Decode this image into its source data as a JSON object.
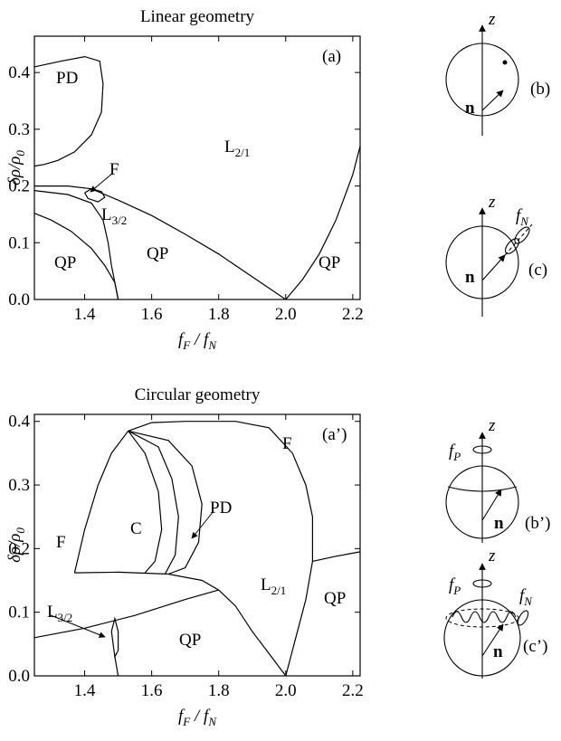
{
  "chart_data": [
    {
      "type": "line",
      "title": "Linear geometry",
      "panel_label": "(a)",
      "xlabel": [
        {
          "text": "f",
          "sub": "F"
        },
        {
          "text": " / "
        },
        {
          "text": "f",
          "sub": "N"
        }
      ],
      "ylabel": [
        {
          "text": "δρ/ρ",
          "sub": "0"
        }
      ],
      "xlim": [
        1.25,
        2.222
      ],
      "ylim": [
        0,
        0.464
      ],
      "xticks": [
        1.4,
        1.6,
        1.8,
        {
          "value": 2,
          "label": "2.0"
        },
        2.2
      ],
      "yticks": [
        {
          "value": 0,
          "label": "0.0"
        },
        0.1,
        0.2,
        0.3,
        0.4
      ],
      "color": "#000000",
      "series": [
        {
          "x": [
            1.25,
            1.33,
            1.4,
            1.445,
            1.455,
            1.45,
            1.42,
            1.37,
            1.32,
            1.28,
            1.25
          ],
          "values": [
            0.41,
            0.42,
            0.428,
            0.42,
            0.38,
            0.33,
            0.29,
            0.26,
            0.245,
            0.238,
            0.235
          ]
        },
        {
          "x": [
            1.25,
            1.35,
            1.42,
            1.5,
            1.6,
            1.7,
            1.8,
            1.9,
            2.0
          ],
          "values": [
            0.2,
            0.2,
            0.195,
            0.175,
            0.148,
            0.115,
            0.08,
            0.04,
            0
          ]
        },
        {
          "x": [
            2.0,
            2.05,
            2.1,
            2.15,
            2.2,
            2.222
          ],
          "values": [
            0,
            0.035,
            0.08,
            0.14,
            0.22,
            0.27
          ]
        },
        {
          "x": [
            1.25,
            1.35,
            1.42,
            1.455,
            1.47,
            1.48,
            1.49,
            1.5
          ],
          "values": [
            0.192,
            0.185,
            0.17,
            0.14,
            0.1,
            0.06,
            0.03,
            0
          ]
        },
        {
          "x": [
            1.25,
            1.3,
            1.36,
            1.42,
            1.46,
            1.49,
            1.5
          ],
          "values": [
            0.152,
            0.14,
            0.12,
            0.09,
            0.06,
            0.03,
            0
          ]
        },
        {
          "x": [
            1.4,
            1.42,
            1.45,
            1.46,
            1.44,
            1.41,
            1.4
          ],
          "values": [
            0.188,
            0.195,
            0.19,
            0.18,
            0.172,
            0.178,
            0.188
          ]
        }
      ],
      "annotations": [
        {
          "text": "PD"
        },
        {
          "text": "L",
          "sub": "2/1"
        },
        {
          "text": "F"
        },
        {
          "text": "L",
          "sub": "3/2"
        },
        {
          "text": "QP"
        },
        {
          "text": "QP"
        },
        {
          "text": "QP"
        }
      ]
    },
    {
      "type": "line",
      "title": "Circular geometry",
      "panel_label": "(a’)",
      "xlabel": [
        {
          "text": "f",
          "sub": "F"
        },
        {
          "text": " / "
        },
        {
          "text": "f",
          "sub": "N"
        }
      ],
      "ylabel": [
        {
          "text": "δρ/ρ",
          "sub": "0"
        }
      ],
      "xlim": [
        1.25,
        2.222
      ],
      "ylim": [
        0,
        0.411
      ],
      "xticks": [
        1.4,
        1.6,
        1.8,
        {
          "value": 2,
          "label": "2.0"
        },
        2.2
      ],
      "yticks": [
        {
          "value": 0,
          "label": "0.0"
        },
        0.1,
        0.2,
        0.3,
        0.4
      ],
      "color": "#000000",
      "series": [
        {
          "x": [
            1.53,
            1.6,
            1.7,
            1.85,
            1.95,
            2.02,
            2.06,
            2.08,
            2.08,
            2.06,
            2.03,
            2.0
          ],
          "values": [
            0.385,
            0.398,
            0.4,
            0.4,
            0.39,
            0.35,
            0.3,
            0.25,
            0.18,
            0.12,
            0.06,
            0
          ]
        },
        {
          "x": [
            1.53,
            1.48,
            1.44,
            1.4,
            1.37
          ],
          "values": [
            0.385,
            0.35,
            0.3,
            0.23,
            0.162
          ]
        },
        {
          "x": [
            1.37,
            1.5,
            1.65,
            1.75,
            1.8,
            1.85,
            1.9,
            1.95,
            2.0
          ],
          "values": [
            0.162,
            0.163,
            0.16,
            0.15,
            0.135,
            0.11,
            0.07,
            0.035,
            0
          ]
        },
        {
          "x": [
            1.53,
            1.58,
            1.62,
            1.63,
            1.61,
            1.58
          ],
          "values": [
            0.385,
            0.35,
            0.29,
            0.23,
            0.18,
            0.162
          ]
        },
        {
          "x": [
            1.53,
            1.62,
            1.66,
            1.68,
            1.67,
            1.64
          ],
          "values": [
            0.385,
            0.36,
            0.31,
            0.25,
            0.19,
            0.16
          ]
        },
        {
          "x": [
            1.53,
            1.65,
            1.72,
            1.75,
            1.74,
            1.7,
            1.65
          ],
          "values": [
            0.385,
            0.37,
            0.33,
            0.27,
            0.21,
            0.17,
            0.16
          ]
        },
        {
          "x": [
            1.25,
            1.4,
            1.55,
            1.7,
            1.8
          ],
          "values": [
            0.06,
            0.075,
            0.095,
            0.12,
            0.135
          ]
        },
        {
          "x": [
            2.08,
            2.15,
            2.222
          ],
          "values": [
            0.18,
            0.188,
            0.195
          ]
        },
        {
          "x": [
            1.48,
            1.49,
            1.5,
            1.5,
            1.49,
            1.48
          ],
          "values": [
            0.07,
            0.09,
            0.07,
            0.04,
            0.03,
            0.07
          ]
        },
        {
          "x": [
            1.49,
            1.5
          ],
          "values": [
            0.03,
            0
          ]
        }
      ],
      "annotations": [
        {
          "text": "F"
        },
        {
          "text": "F"
        },
        {
          "text": "C"
        },
        {
          "text": "PD"
        },
        {
          "text": "L",
          "sub": "2/1"
        },
        {
          "text": "QP"
        },
        {
          "text": "L",
          "sub": "3/2"
        },
        {
          "text": "QP"
        }
      ]
    }
  ],
  "insets": [
    {
      "axis": "z",
      "vector": "n",
      "label": "(b)"
    },
    {
      "axis": "z",
      "vector": "n",
      "frequency": {
        "text": "f",
        "sub": "N"
      },
      "label": "(c)"
    },
    {
      "axis": "z",
      "vector": "n",
      "precession": {
        "text": "f",
        "sub": "P"
      },
      "label": "(b’)"
    },
    {
      "axis": "z",
      "vector": "n",
      "precession": {
        "text": "f",
        "sub": "P"
      },
      "frequency": {
        "text": "f",
        "sub": "N"
      },
      "label": "(c’)"
    }
  ]
}
